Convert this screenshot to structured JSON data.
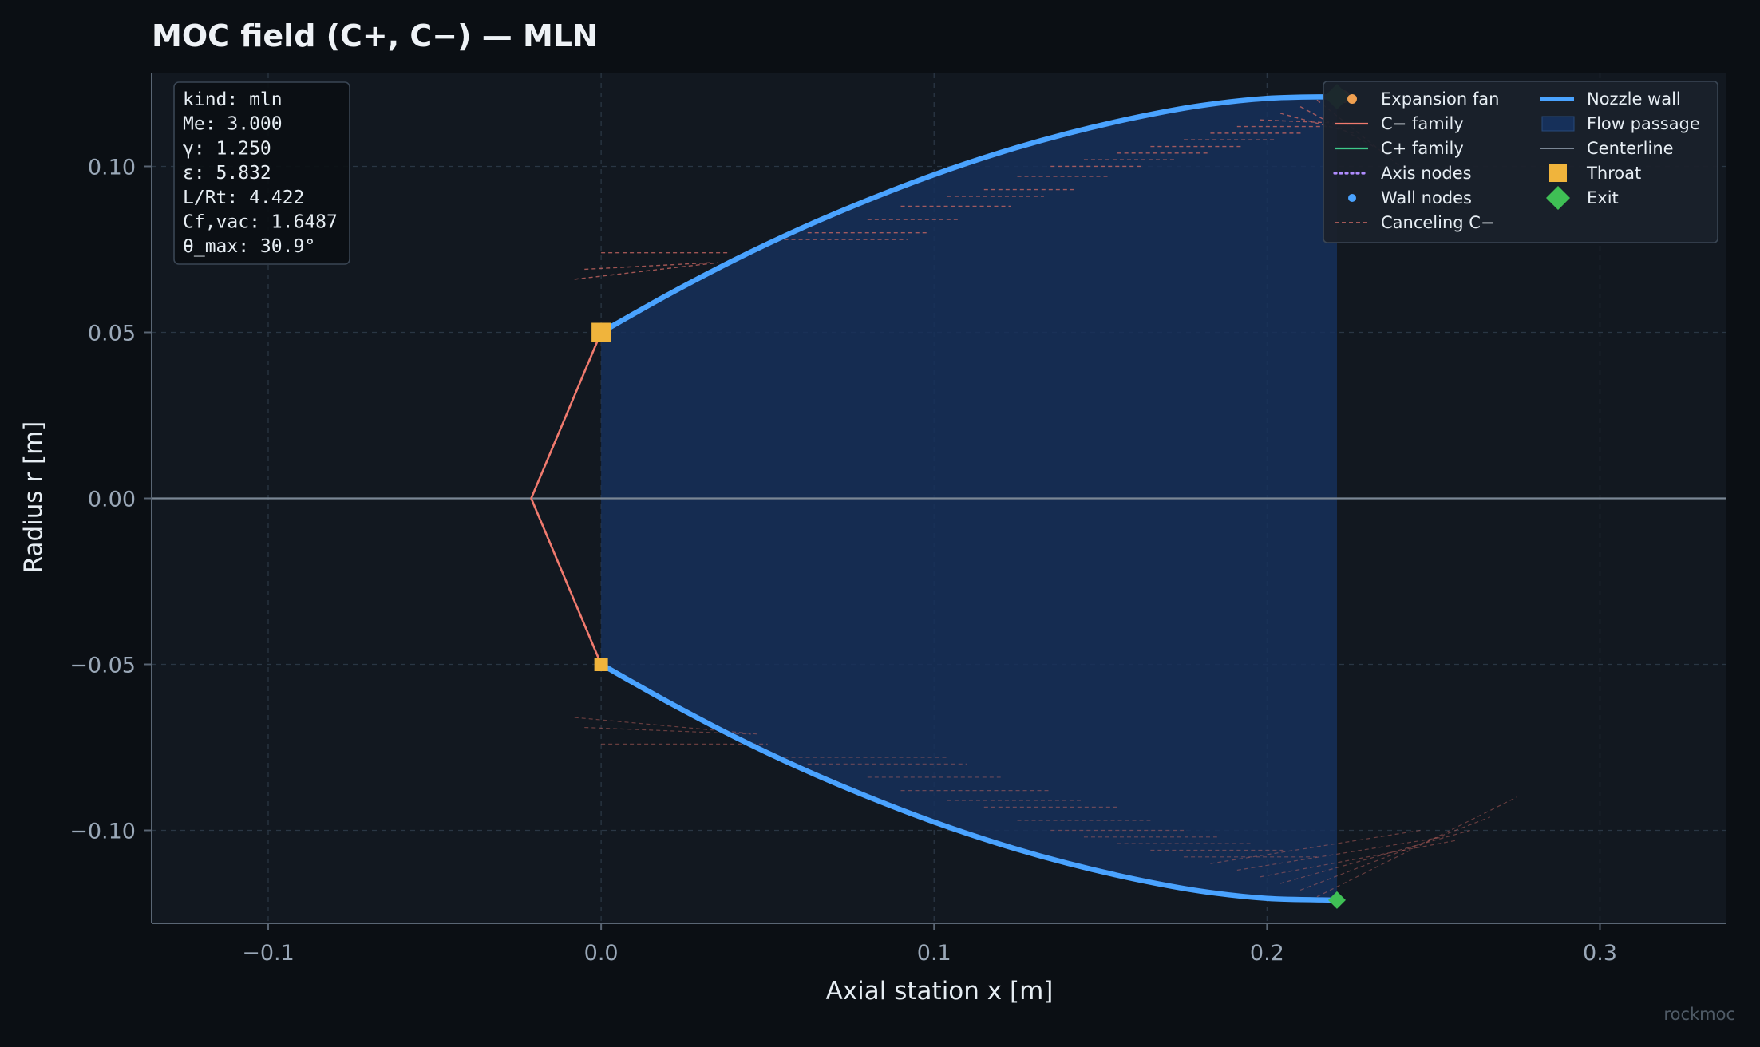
{
  "colors": {
    "background": "#0b0f14",
    "plot_background": "#121820",
    "wall": "#4aa3ff",
    "passage": "#16305a",
    "c_minus": "#f07a6e",
    "c_plus": "#3ec98a",
    "axis_nodes": "#b08cff",
    "wall_nodes": "#4aa3ff",
    "canceling": "#d06a64",
    "centerline": "#7a8694",
    "throat": "#f0b43c",
    "exit": "#3fbf55",
    "fan": "#f0a050"
  },
  "chart_data": {
    "type": "line",
    "title": "MOC field (C+, C−) — MLN",
    "xlabel": "Axial station  x  [m]",
    "ylabel": "Radius  r  [m]",
    "xlim": [
      -0.135,
      0.338
    ],
    "ylim": [
      -0.128,
      0.128
    ],
    "xticks": [
      {
        "value": -0.1,
        "label": "−0.1"
      },
      {
        "value": 0.0,
        "label": "0.0"
      },
      {
        "value": 0.1,
        "label": "0.1"
      },
      {
        "value": 0.2,
        "label": "0.2"
      },
      {
        "value": 0.3,
        "label": "0.3"
      }
    ],
    "yticks": [
      {
        "value": 0.1,
        "label": "0.10"
      },
      {
        "value": 0.05,
        "label": "0.05"
      },
      {
        "value": 0.0,
        "label": "0.00"
      },
      {
        "value": -0.05,
        "label": "−0.05"
      },
      {
        "value": -0.1,
        "label": "−0.10"
      }
    ],
    "grid": true,
    "legend_position": "top-right",
    "info_box": [
      "kind: mln",
      "Me: 3.000",
      "γ: 1.250",
      "ε: 5.832",
      "L/Rt: 4.422",
      "Cf,vac: 1.6487",
      "θ_max: 30.9°"
    ],
    "legend": [
      {
        "key": "fan",
        "label": "Expansion fan"
      },
      {
        "key": "c_minus",
        "label": "C− family"
      },
      {
        "key": "c_plus",
        "label": "C+ family"
      },
      {
        "key": "axis_nodes",
        "label": "Axis nodes"
      },
      {
        "key": "wall_nodes",
        "label": "Wall nodes"
      },
      {
        "key": "canceling",
        "label": "Canceling C−"
      },
      {
        "key": "wall",
        "label": "Nozzle wall"
      },
      {
        "key": "passage",
        "label": "Flow passage"
      },
      {
        "key": "centerline",
        "label": "Centerline"
      },
      {
        "key": "throat",
        "label": "Throat"
      },
      {
        "key": "exit",
        "label": "Exit"
      }
    ],
    "series": [
      {
        "name": "Nozzle wall",
        "points": [
          [
            0.0,
            0.05
          ],
          [
            0.02,
            0.0613
          ],
          [
            0.04,
            0.0718
          ],
          [
            0.06,
            0.0813
          ],
          [
            0.08,
            0.0898
          ],
          [
            0.1,
            0.0975
          ],
          [
            0.12,
            0.1042
          ],
          [
            0.14,
            0.1099
          ],
          [
            0.16,
            0.1146
          ],
          [
            0.18,
            0.1183
          ],
          [
            0.2,
            0.1205
          ],
          [
            0.221,
            0.121
          ]
        ]
      },
      {
        "name": "C− family",
        "points": [
          [
            0.0,
            0.05
          ],
          [
            -0.021,
            0.0
          ],
          [
            0.0,
            -0.05
          ]
        ]
      },
      {
        "name": "Canceling C−",
        "segments": [
          [
            [
              -0.008,
              0.066
            ],
            [
              0.035,
              0.071
            ]
          ],
          [
            [
              -0.005,
              0.069
            ],
            [
              0.033,
              0.071
            ]
          ],
          [
            [
              0.0,
              0.074
            ],
            [
              0.038,
              0.074
            ]
          ],
          [
            [
              0.055,
              0.078
            ],
            [
              0.092,
              0.078
            ]
          ],
          [
            [
              0.062,
              0.08
            ],
            [
              0.098,
              0.08
            ]
          ],
          [
            [
              0.08,
              0.084
            ],
            [
              0.108,
              0.084
            ]
          ],
          [
            [
              0.09,
              0.088
            ],
            [
              0.123,
              0.088
            ]
          ],
          [
            [
              0.104,
              0.091
            ],
            [
              0.133,
              0.091
            ]
          ],
          [
            [
              0.115,
              0.093
            ],
            [
              0.143,
              0.093
            ]
          ],
          [
            [
              0.125,
              0.097
            ],
            [
              0.153,
              0.097
            ]
          ],
          [
            [
              0.135,
              0.1
            ],
            [
              0.163,
              0.1
            ]
          ],
          [
            [
              0.145,
              0.102
            ],
            [
              0.173,
              0.102
            ]
          ],
          [
            [
              0.155,
              0.104
            ],
            [
              0.183,
              0.104
            ]
          ],
          [
            [
              0.165,
              0.106
            ],
            [
              0.193,
              0.106
            ]
          ],
          [
            [
              0.175,
              0.108
            ],
            [
              0.203,
              0.108
            ]
          ],
          [
            [
              0.183,
              0.11
            ],
            [
              0.211,
              0.11
            ]
          ],
          [
            [
              0.191,
              0.112
            ],
            [
              0.218,
              0.112
            ]
          ],
          [
            [
              0.198,
              0.114
            ],
            [
              0.222,
              0.113
            ]
          ],
          [
            [
              0.204,
              0.116
            ],
            [
              0.226,
              0.11
            ]
          ],
          [
            [
              0.21,
              0.118
            ],
            [
              0.232,
              0.106
            ]
          ],
          [
            [
              0.215,
              0.12
            ],
            [
              0.24,
              0.1
            ]
          ]
        ]
      }
    ],
    "throat_points": [
      [
        0.0,
        0.05
      ],
      [
        0.0,
        -0.05
      ]
    ],
    "exit_points": [
      [
        0.221,
        0.121
      ],
      [
        0.221,
        -0.121
      ]
    ],
    "fan_point": [
      0.223,
      0.121
    ]
  },
  "watermark": "rockmoc"
}
